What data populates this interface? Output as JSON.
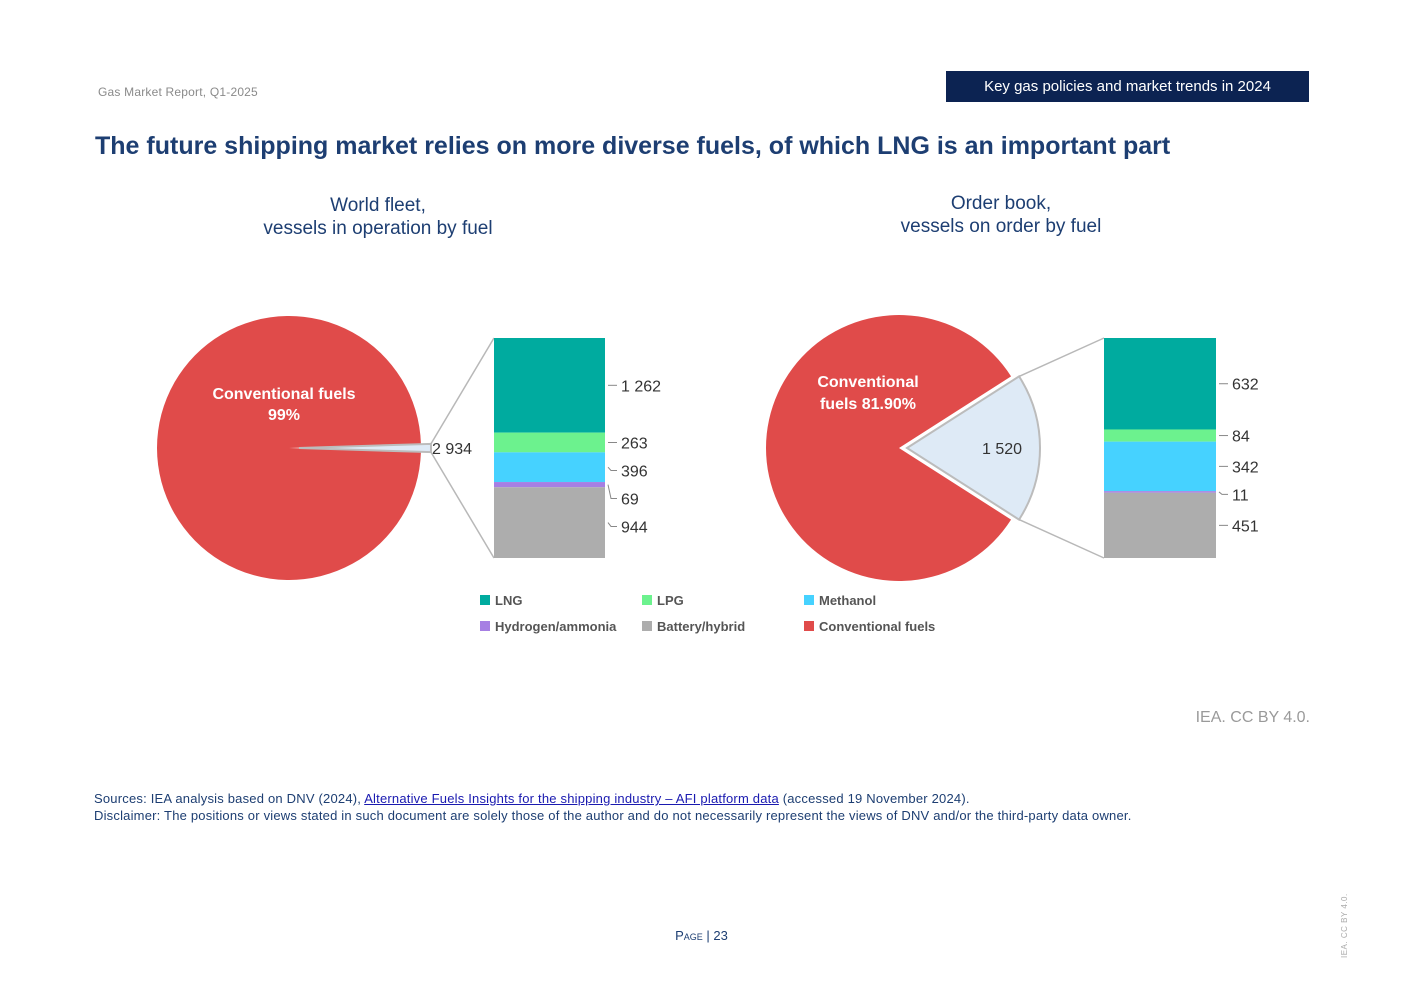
{
  "header": {
    "report": "Gas Market Report, Q1-2025",
    "section": "Key gas policies and market trends in 2024"
  },
  "title": "The future shipping market relies on more diverse fuels, of which LNG is an important part",
  "chart_data": [
    {
      "type": "pie",
      "title_line1": "World fleet,",
      "title_line2": "vessels in operation by fuel",
      "main_label_line1": "Conventional fuels",
      "main_label_line2": "99%",
      "main_share": 0.99,
      "other_total": 2934,
      "other_total_label": "2 934",
      "breakdown": [
        {
          "name": "LNG",
          "value": 1262,
          "label": "1 262"
        },
        {
          "name": "LPG",
          "value": 263,
          "label": "263"
        },
        {
          "name": "Methanol",
          "value": 396,
          "label": "396"
        },
        {
          "name": "Hydrogen/ammonia",
          "value": 69,
          "label": "69"
        },
        {
          "name": "Battery/hybrid",
          "value": 944,
          "label": "944"
        }
      ]
    },
    {
      "type": "pie",
      "title_line1": "Order book,",
      "title_line2": "vessels on order by fuel",
      "main_label_line1": "Conventional",
      "main_label_line2": "fuels   81.90%",
      "main_share": 0.819,
      "other_total": 1520,
      "other_total_label": "1 520",
      "breakdown": [
        {
          "name": "LNG",
          "value": 632,
          "label": "632"
        },
        {
          "name": "LPG",
          "value": 84,
          "label": "84"
        },
        {
          "name": "Methanol",
          "value": 342,
          "label": "342"
        },
        {
          "name": "Hydrogen/ammonia",
          "value": 11,
          "label": "11"
        },
        {
          "name": "Battery/hybrid",
          "value": 451,
          "label": "451"
        }
      ]
    }
  ],
  "legend": [
    {
      "name": "LNG",
      "color": "#00ab9f"
    },
    {
      "name": "LPG",
      "color": "#6cf28e"
    },
    {
      "name": "Methanol",
      "color": "#46d2ff"
    },
    {
      "name": "Hydrogen/ammonia",
      "color": "#a67fe3"
    },
    {
      "name": "Battery/hybrid",
      "color": "#adadad"
    },
    {
      "name": "Conventional fuels",
      "color": "#e04b4a"
    }
  ],
  "colors": {
    "conventional": "#e04b4a",
    "other_slice": "#deeaf6",
    "connector": "#b8b8b8"
  },
  "credit": "IEA. CC BY 4.0.",
  "sources": {
    "prefix": "Sources: IEA analysis based on DNV (2024), ",
    "link": "Alternative Fuels Insights for the shipping industry – AFI platform data",
    "suffix": " (accessed 19 November 2024).",
    "disclaimer": "Disclaimer: The positions or views stated in such document are solely those of the author and do not necessarily represent the views of DNV and/or the third-party data owner."
  },
  "page": {
    "word": "Page",
    "sep": " | ",
    "number": "23"
  },
  "side_credit": "IEA. CC BY 4.0."
}
